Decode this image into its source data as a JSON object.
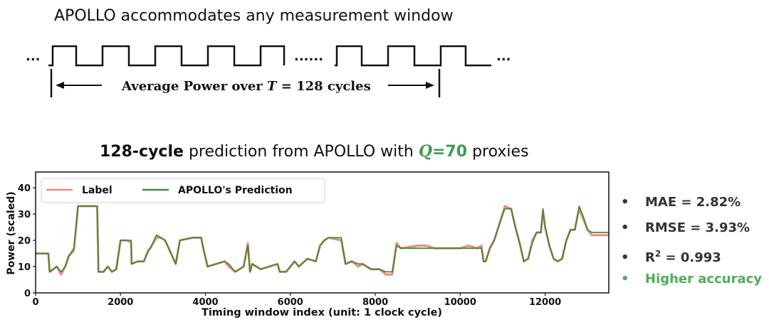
{
  "heading": "APOLLO accommodates any measurement window",
  "timing": {
    "ellipsis_left": "...",
    "ellipsis_mid": "......",
    "ellipsis_right": "...",
    "label_prefix": "Average Power over",
    "label_var": "T",
    "label_suffix": "= 128 cycles"
  },
  "chart_title": {
    "bold_part": "128-cycle",
    "middle_part": " prediction from APOLLO with ",
    "q_var": "Q",
    "q_value": "=70",
    "end_part": " proxies"
  },
  "chart_data": {
    "type": "line",
    "xlabel": "Timing window index (unit: 1 clock cycle)",
    "ylabel": "Power (scaled)",
    "xlim": [
      0,
      13500
    ],
    "ylim": [
      0,
      46
    ],
    "xticks": [
      0,
      2000,
      4000,
      6000,
      8000,
      10000,
      12000
    ],
    "yticks": [
      0,
      10,
      20,
      30,
      40
    ],
    "legend_placement": "top-left",
    "grid": false,
    "series": [
      {
        "name": "Label",
        "color": "#f08a78",
        "x": [
          0,
          300,
          330,
          500,
          600,
          700,
          780,
          900,
          950,
          1000,
          1450,
          1480,
          1600,
          1700,
          1800,
          1900,
          2000,
          2050,
          2150,
          2250,
          2260,
          2400,
          2550,
          2650,
          2700,
          2850,
          2950,
          3050,
          3300,
          3400,
          3700,
          3900,
          3950,
          4050,
          4450,
          4550,
          4700,
          4900,
          5000,
          5050,
          5100,
          5300,
          5500,
          5700,
          5750,
          5900,
          6000,
          6100,
          6200,
          6400,
          6600,
          6700,
          6800,
          6900,
          7200,
          7300,
          7450,
          7600,
          7700,
          7900,
          8100,
          8250,
          8400,
          8500,
          8600,
          9000,
          9200,
          9400,
          9600,
          9800,
          10000,
          10200,
          10400,
          10500,
          10550,
          10600,
          10700,
          10800,
          10900,
          11050,
          11200,
          11300,
          11400,
          11500,
          11600,
          11700,
          11800,
          11900,
          11950,
          12000,
          12100,
          12200,
          12300,
          12400,
          12500,
          12550,
          12600,
          12700,
          12800,
          12900,
          13000,
          13100,
          13200,
          13300,
          13500
        ],
        "y": [
          15,
          15,
          8,
          10,
          7,
          10,
          14,
          16,
          24,
          33,
          33,
          8,
          8,
          10,
          8,
          9,
          20,
          20,
          20,
          19,
          11,
          12,
          12,
          16,
          17,
          21,
          21,
          20,
          11,
          20,
          21,
          21,
          17,
          10,
          12,
          10,
          8,
          10,
          19,
          8,
          11,
          9,
          10,
          11,
          8,
          8,
          10,
          12,
          10,
          13,
          12,
          18,
          20,
          21,
          20,
          11,
          12,
          10,
          11,
          9,
          9,
          7,
          7,
          19,
          17,
          18,
          18,
          17,
          17,
          17,
          17,
          18,
          17,
          18,
          12,
          12,
          17,
          20,
          25,
          33,
          32,
          25,
          19,
          12,
          13,
          20,
          23,
          23,
          31,
          25,
          18,
          13,
          12,
          13,
          20,
          22,
          24,
          24,
          32,
          28,
          24,
          22,
          22,
          22,
          22
        ]
      },
      {
        "name": "APOLLO's Prediction",
        "color": "#3e8a3c",
        "x": [
          0,
          300,
          330,
          500,
          600,
          700,
          780,
          900,
          950,
          1000,
          1450,
          1480,
          1600,
          1700,
          1800,
          1900,
          2000,
          2050,
          2150,
          2250,
          2260,
          2400,
          2550,
          2650,
          2700,
          2850,
          2950,
          3050,
          3300,
          3400,
          3700,
          3900,
          3950,
          4050,
          4450,
          4550,
          4700,
          4900,
          5000,
          5050,
          5100,
          5300,
          5500,
          5700,
          5750,
          5900,
          6000,
          6100,
          6200,
          6400,
          6600,
          6700,
          6800,
          6900,
          7200,
          7300,
          7450,
          7600,
          7700,
          7900,
          8100,
          8250,
          8400,
          8500,
          8600,
          9000,
          9200,
          9400,
          9600,
          9800,
          10000,
          10200,
          10400,
          10500,
          10550,
          10600,
          10700,
          10800,
          10900,
          11050,
          11200,
          11300,
          11400,
          11500,
          11600,
          11700,
          11800,
          11900,
          11950,
          12000,
          12100,
          12200,
          12300,
          12400,
          12500,
          12550,
          12600,
          12700,
          12800,
          12900,
          13000,
          13100,
          13200,
          13300,
          13500
        ],
        "y": [
          15,
          15,
          8,
          10,
          8,
          10,
          14,
          17,
          25,
          33,
          33,
          8,
          8,
          10,
          8,
          9,
          20,
          20,
          20,
          20,
          11,
          12,
          12,
          16,
          17,
          22,
          21,
          20,
          11,
          20,
          21,
          21,
          17,
          10,
          12,
          11,
          8,
          10,
          18,
          8,
          11,
          9,
          10,
          11,
          8,
          8,
          10,
          12,
          10,
          13,
          12,
          18,
          20,
          21,
          21,
          11,
          12,
          11,
          11,
          9,
          9,
          8,
          8,
          18,
          17,
          17,
          17,
          17,
          17,
          17,
          17,
          17,
          17,
          17,
          12,
          12,
          17,
          20,
          25,
          32,
          32,
          25,
          19,
          12,
          13,
          19,
          23,
          23,
          32,
          25,
          18,
          13,
          12,
          13,
          20,
          22,
          24,
          24,
          33,
          29,
          24,
          23,
          23,
          23,
          23
        ]
      }
    ]
  },
  "metrics": {
    "bullet": "•",
    "mae": "MAE = 2.82%",
    "rmse": "RMSE = 3.93%",
    "r2_prefix": "R",
    "r2_sup": "2",
    "r2_suffix": " = 0.993",
    "higher_accuracy": "Higher accuracy",
    "accent_color": "#4caf59"
  }
}
